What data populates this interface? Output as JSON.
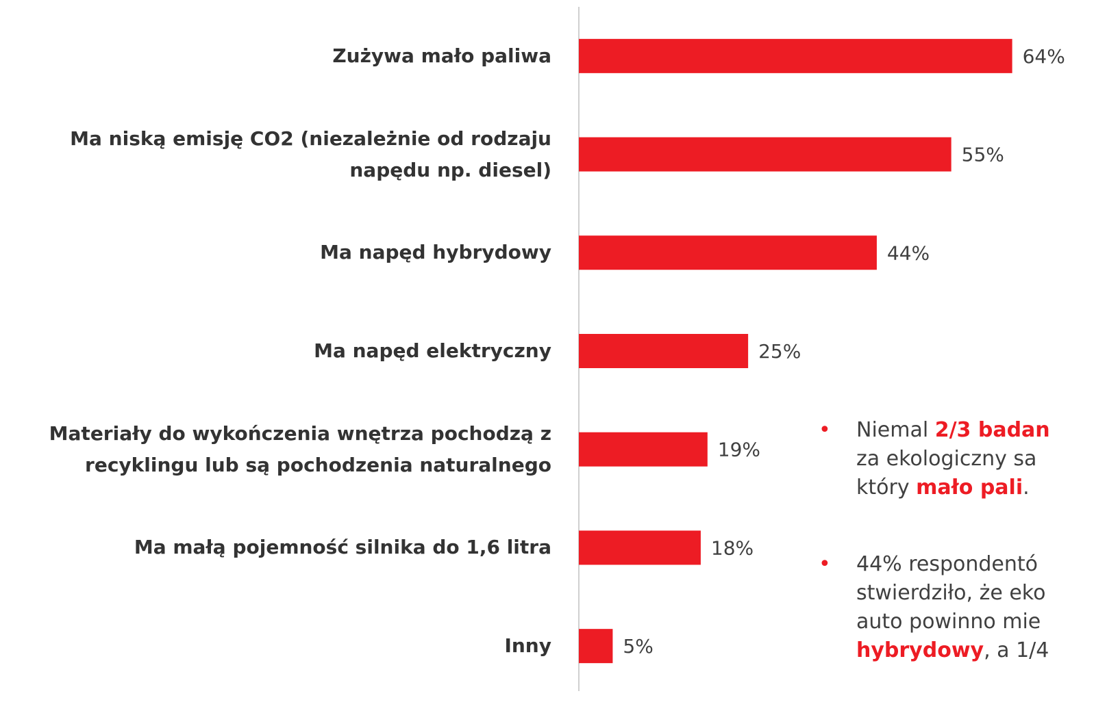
{
  "chart_data": {
    "type": "bar",
    "orientation": "horizontal",
    "categories": [
      "Zużywa mało paliwa",
      "Ma niską emisję CO2 (niezależnie od rodzaju\nnapędu np. diesel)",
      "Ma napęd hybrydowy",
      "Ma napęd elektryczny",
      "Materiały do wykończenia wnętrza pochodzą z\nrecyklingu lub są pochodzenia naturalnego",
      "Ma małą pojemność silnika do 1,6 litra",
      "Inny"
    ],
    "values": [
      64,
      55,
      44,
      25,
      19,
      18,
      5
    ],
    "value_labels": [
      "64%",
      "55%",
      "44%",
      "25%",
      "19%",
      "18%",
      "5%"
    ],
    "color": "#ed1c24",
    "xlim": [
      0,
      78
    ]
  },
  "notes": [
    [
      [
        {
          "text": "Niemal "
        },
        {
          "text": "2/3 badan",
          "bold": true
        }
      ],
      [
        {
          "text": "za ekologiczny sa"
        }
      ],
      [
        {
          "text": "który "
        },
        {
          "text": "mało pali",
          "bold": true
        },
        {
          "text": "."
        }
      ]
    ],
    [
      [
        {
          "text": "44% respondentó"
        }
      ],
      [
        {
          "text": "stwierdziło, że eko"
        }
      ],
      [
        {
          "text": "auto powinno mie"
        }
      ],
      [
        {
          "text": "hybrydowy",
          "bold": true
        },
        {
          "text": ", a 1/4"
        }
      ]
    ]
  ]
}
